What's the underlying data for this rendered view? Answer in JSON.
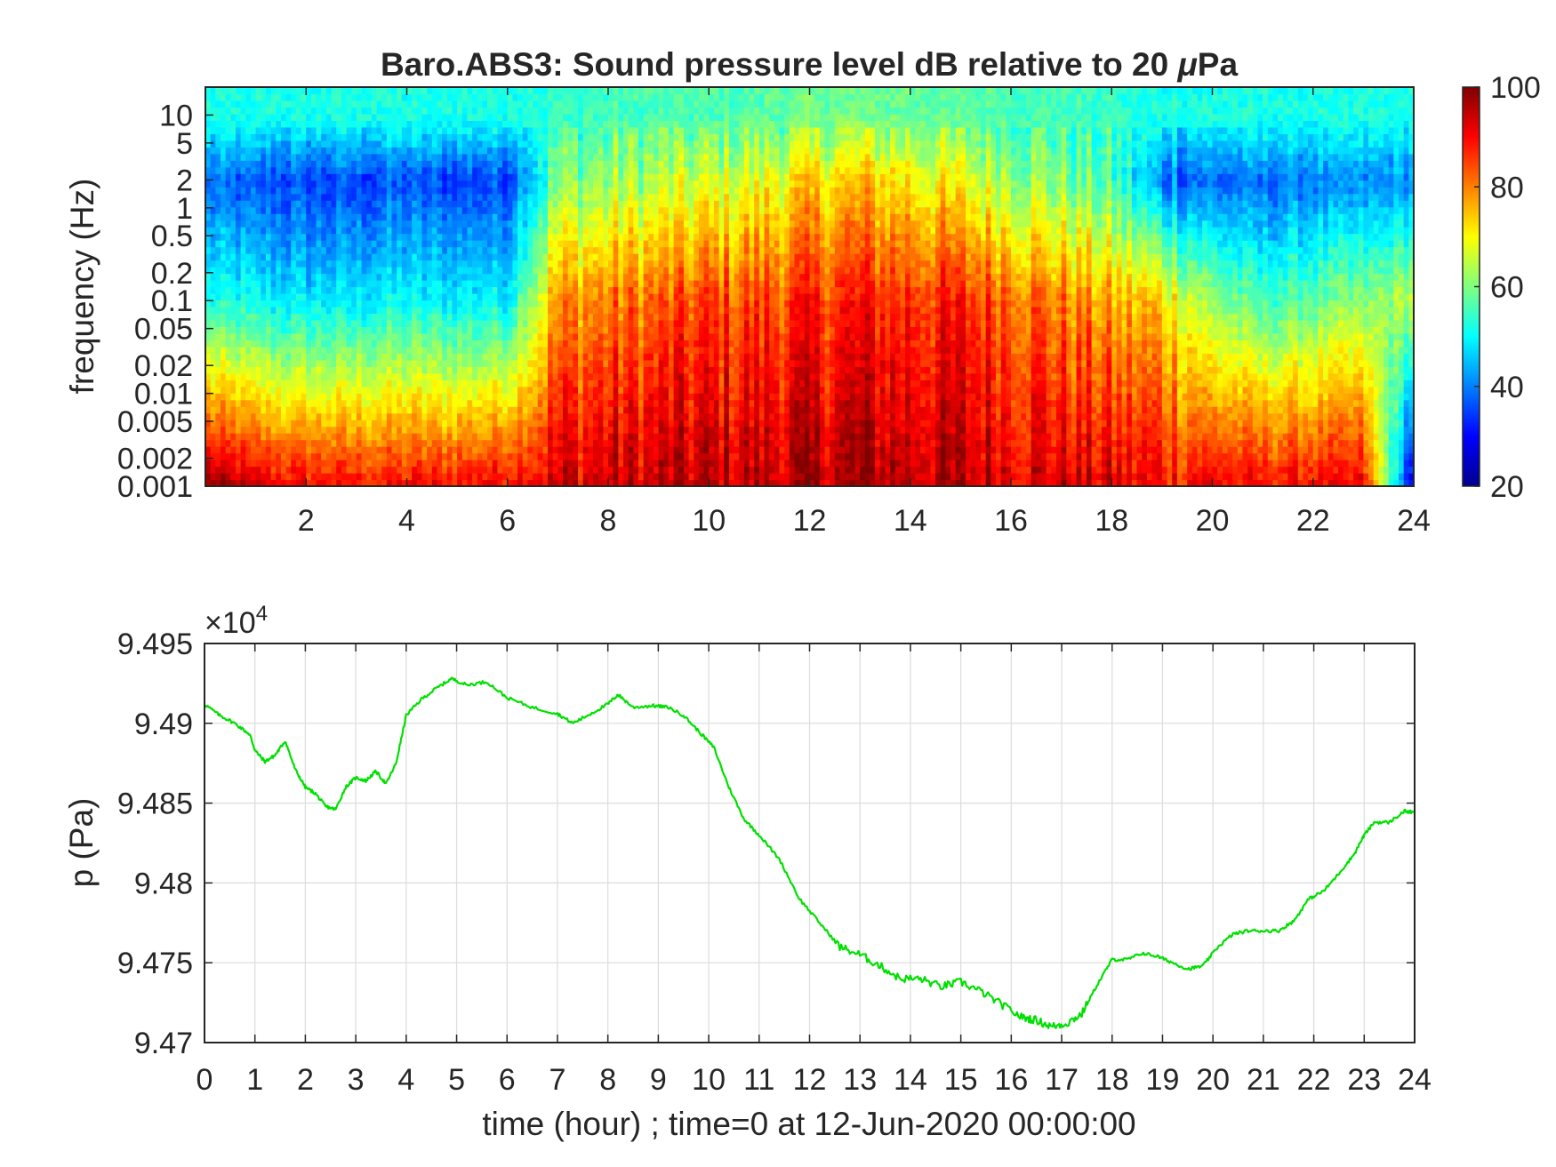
{
  "chart_data": [
    {
      "type": "heatmap",
      "title": "Baro.ABS3: Sound pressure level dB relative to 20 μPa",
      "title_prefix": "Baro.ABS3: Sound pressure level dB relative to 20 ",
      "title_unit_mu": "μ",
      "title_unit_rest": "Pa",
      "xlabel": "",
      "ylabel": "frequency (Hz)",
      "xlim": [
        0,
        24
      ],
      "ylim": [
        0.001,
        20
      ],
      "yscale": "log",
      "x_ticks": [
        2,
        4,
        6,
        8,
        10,
        12,
        14,
        16,
        18,
        20,
        22,
        24
      ],
      "x_tick_labels": [
        "2",
        "4",
        "6",
        "8",
        "10",
        "12",
        "14",
        "16",
        "18",
        "20",
        "22",
        "24"
      ],
      "y_ticks": [
        0.001,
        0.002,
        0.005,
        0.01,
        0.02,
        0.05,
        0.1,
        0.2,
        0.5,
        1,
        2,
        5,
        10
      ],
      "y_tick_labels": [
        "0.001",
        "0.002",
        "0.005",
        "0.01",
        "0.02",
        "0.05",
        "0.1",
        "0.2",
        "0.5",
        "1",
        "2",
        "5",
        "10"
      ],
      "colorbar": {
        "colormap": "jet",
        "range": [
          20,
          100
        ],
        "ticks": [
          20,
          40,
          60,
          80,
          100
        ],
        "tick_labels": [
          "20",
          "40",
          "60",
          "80",
          "100"
        ]
      },
      "description_grid": {
        "times_hours": [
          0,
          1,
          2,
          3,
          4,
          5,
          6,
          7,
          8,
          9,
          10,
          11,
          12,
          13,
          14,
          15,
          16,
          17,
          18,
          19,
          20,
          21,
          22,
          23,
          24
        ],
        "level_0_001Hz_dB": [
          98,
          92,
          90,
          89,
          89,
          90,
          91,
          93,
          94,
          94,
          95,
          95,
          96,
          97,
          96,
          95,
          94,
          93,
          92,
          90,
          90,
          90,
          90,
          90,
          25
        ],
        "level_0_1Hz_dB": [
          52,
          50,
          48,
          49,
          50,
          49,
          50,
          78,
          80,
          82,
          84,
          85,
          86,
          88,
          87,
          87,
          84,
          80,
          76,
          74,
          62,
          55,
          58,
          60,
          65
        ],
        "level_2Hz_dB": [
          38,
          36,
          35,
          35,
          36,
          35,
          36,
          60,
          62,
          64,
          66,
          68,
          72,
          74,
          72,
          68,
          64,
          60,
          55,
          40,
          38,
          38,
          40,
          40,
          42
        ],
        "level_10Hz_dB": [
          52,
          52,
          52,
          52,
          52,
          52,
          52,
          54,
          55,
          56,
          56,
          57,
          58,
          59,
          58,
          57,
          56,
          55,
          54,
          52,
          52,
          52,
          52,
          52,
          52
        ]
      }
    },
    {
      "type": "line",
      "title": "",
      "xlabel": "time (hour) ; time=0 at 12-Jun-2020 00:00:00",
      "ylabel": "p (Pa)",
      "xlim": [
        0,
        24
      ],
      "ylim": [
        94700,
        94950
      ],
      "grid": true,
      "exponent_label": "×10",
      "exponent_power": "4",
      "x_ticks": [
        0,
        1,
        2,
        3,
        4,
        5,
        6,
        7,
        8,
        9,
        10,
        11,
        12,
        13,
        14,
        15,
        16,
        17,
        18,
        19,
        20,
        21,
        22,
        23,
        24
      ],
      "x_tick_labels": [
        "0",
        "1",
        "2",
        "3",
        "4",
        "5",
        "6",
        "7",
        "8",
        "9",
        "10",
        "11",
        "12",
        "13",
        "14",
        "15",
        "16",
        "17",
        "18",
        "19",
        "20",
        "21",
        "22",
        "23",
        "24"
      ],
      "y_ticks": [
        94700,
        94750,
        94800,
        94850,
        94900,
        94950
      ],
      "y_tick_labels": [
        "9.47",
        "9.475",
        "9.48",
        "9.485",
        "9.49",
        "9.495"
      ],
      "series": [
        {
          "color": "#00e000",
          "x": [
            0,
            0.3,
            0.6,
            0.9,
            1.0,
            1.2,
            1.4,
            1.6,
            1.8,
            2.0,
            2.2,
            2.4,
            2.6,
            2.8,
            3.0,
            3.2,
            3.4,
            3.6,
            3.8,
            4.0,
            4.3,
            4.6,
            4.9,
            5.2,
            5.6,
            6.0,
            6.5,
            7.0,
            7.3,
            7.6,
            8.0,
            8.2,
            8.5,
            8.9,
            9.2,
            9.5,
            9.8,
            10.1,
            10.4,
            10.7,
            11.0,
            11.4,
            11.8,
            12.2,
            12.6,
            13.0,
            13.4,
            13.8,
            14.2,
            14.6,
            15.0,
            15.4,
            15.8,
            16.2,
            16.5,
            16.8,
            17.1,
            17.4,
            17.7,
            18.0,
            18.3,
            18.6,
            18.9,
            19.2,
            19.5,
            19.8,
            20.1,
            20.4,
            20.7,
            21.0,
            21.3,
            21.6,
            21.9,
            22.2,
            22.5,
            22.8,
            23.0,
            23.2,
            23.5,
            23.8,
            24.0
          ],
          "y": [
            94912,
            94905,
            94900,
            94893,
            94883,
            94876,
            94880,
            94889,
            94871,
            94860,
            94856,
            94848,
            94846,
            94860,
            94866,
            94864,
            94870,
            94862,
            94875,
            94905,
            94915,
            94922,
            94928,
            94924,
            94926,
            94916,
            94910,
            94906,
            94900,
            94905,
            94912,
            94918,
            94910,
            94911,
            94910,
            94905,
            94895,
            94885,
            94860,
            94840,
            94830,
            94815,
            94790,
            94775,
            94760,
            94755,
            94748,
            94740,
            94740,
            94735,
            94738,
            94732,
            94724,
            94716,
            94714,
            94710,
            94712,
            94718,
            94736,
            94752,
            94752,
            94756,
            94754,
            94750,
            94746,
            94748,
            94760,
            94768,
            94770,
            94770,
            94770,
            94776,
            94790,
            94795,
            94806,
            94818,
            94830,
            94838,
            94838,
            94845,
            94844
          ]
        }
      ]
    }
  ]
}
